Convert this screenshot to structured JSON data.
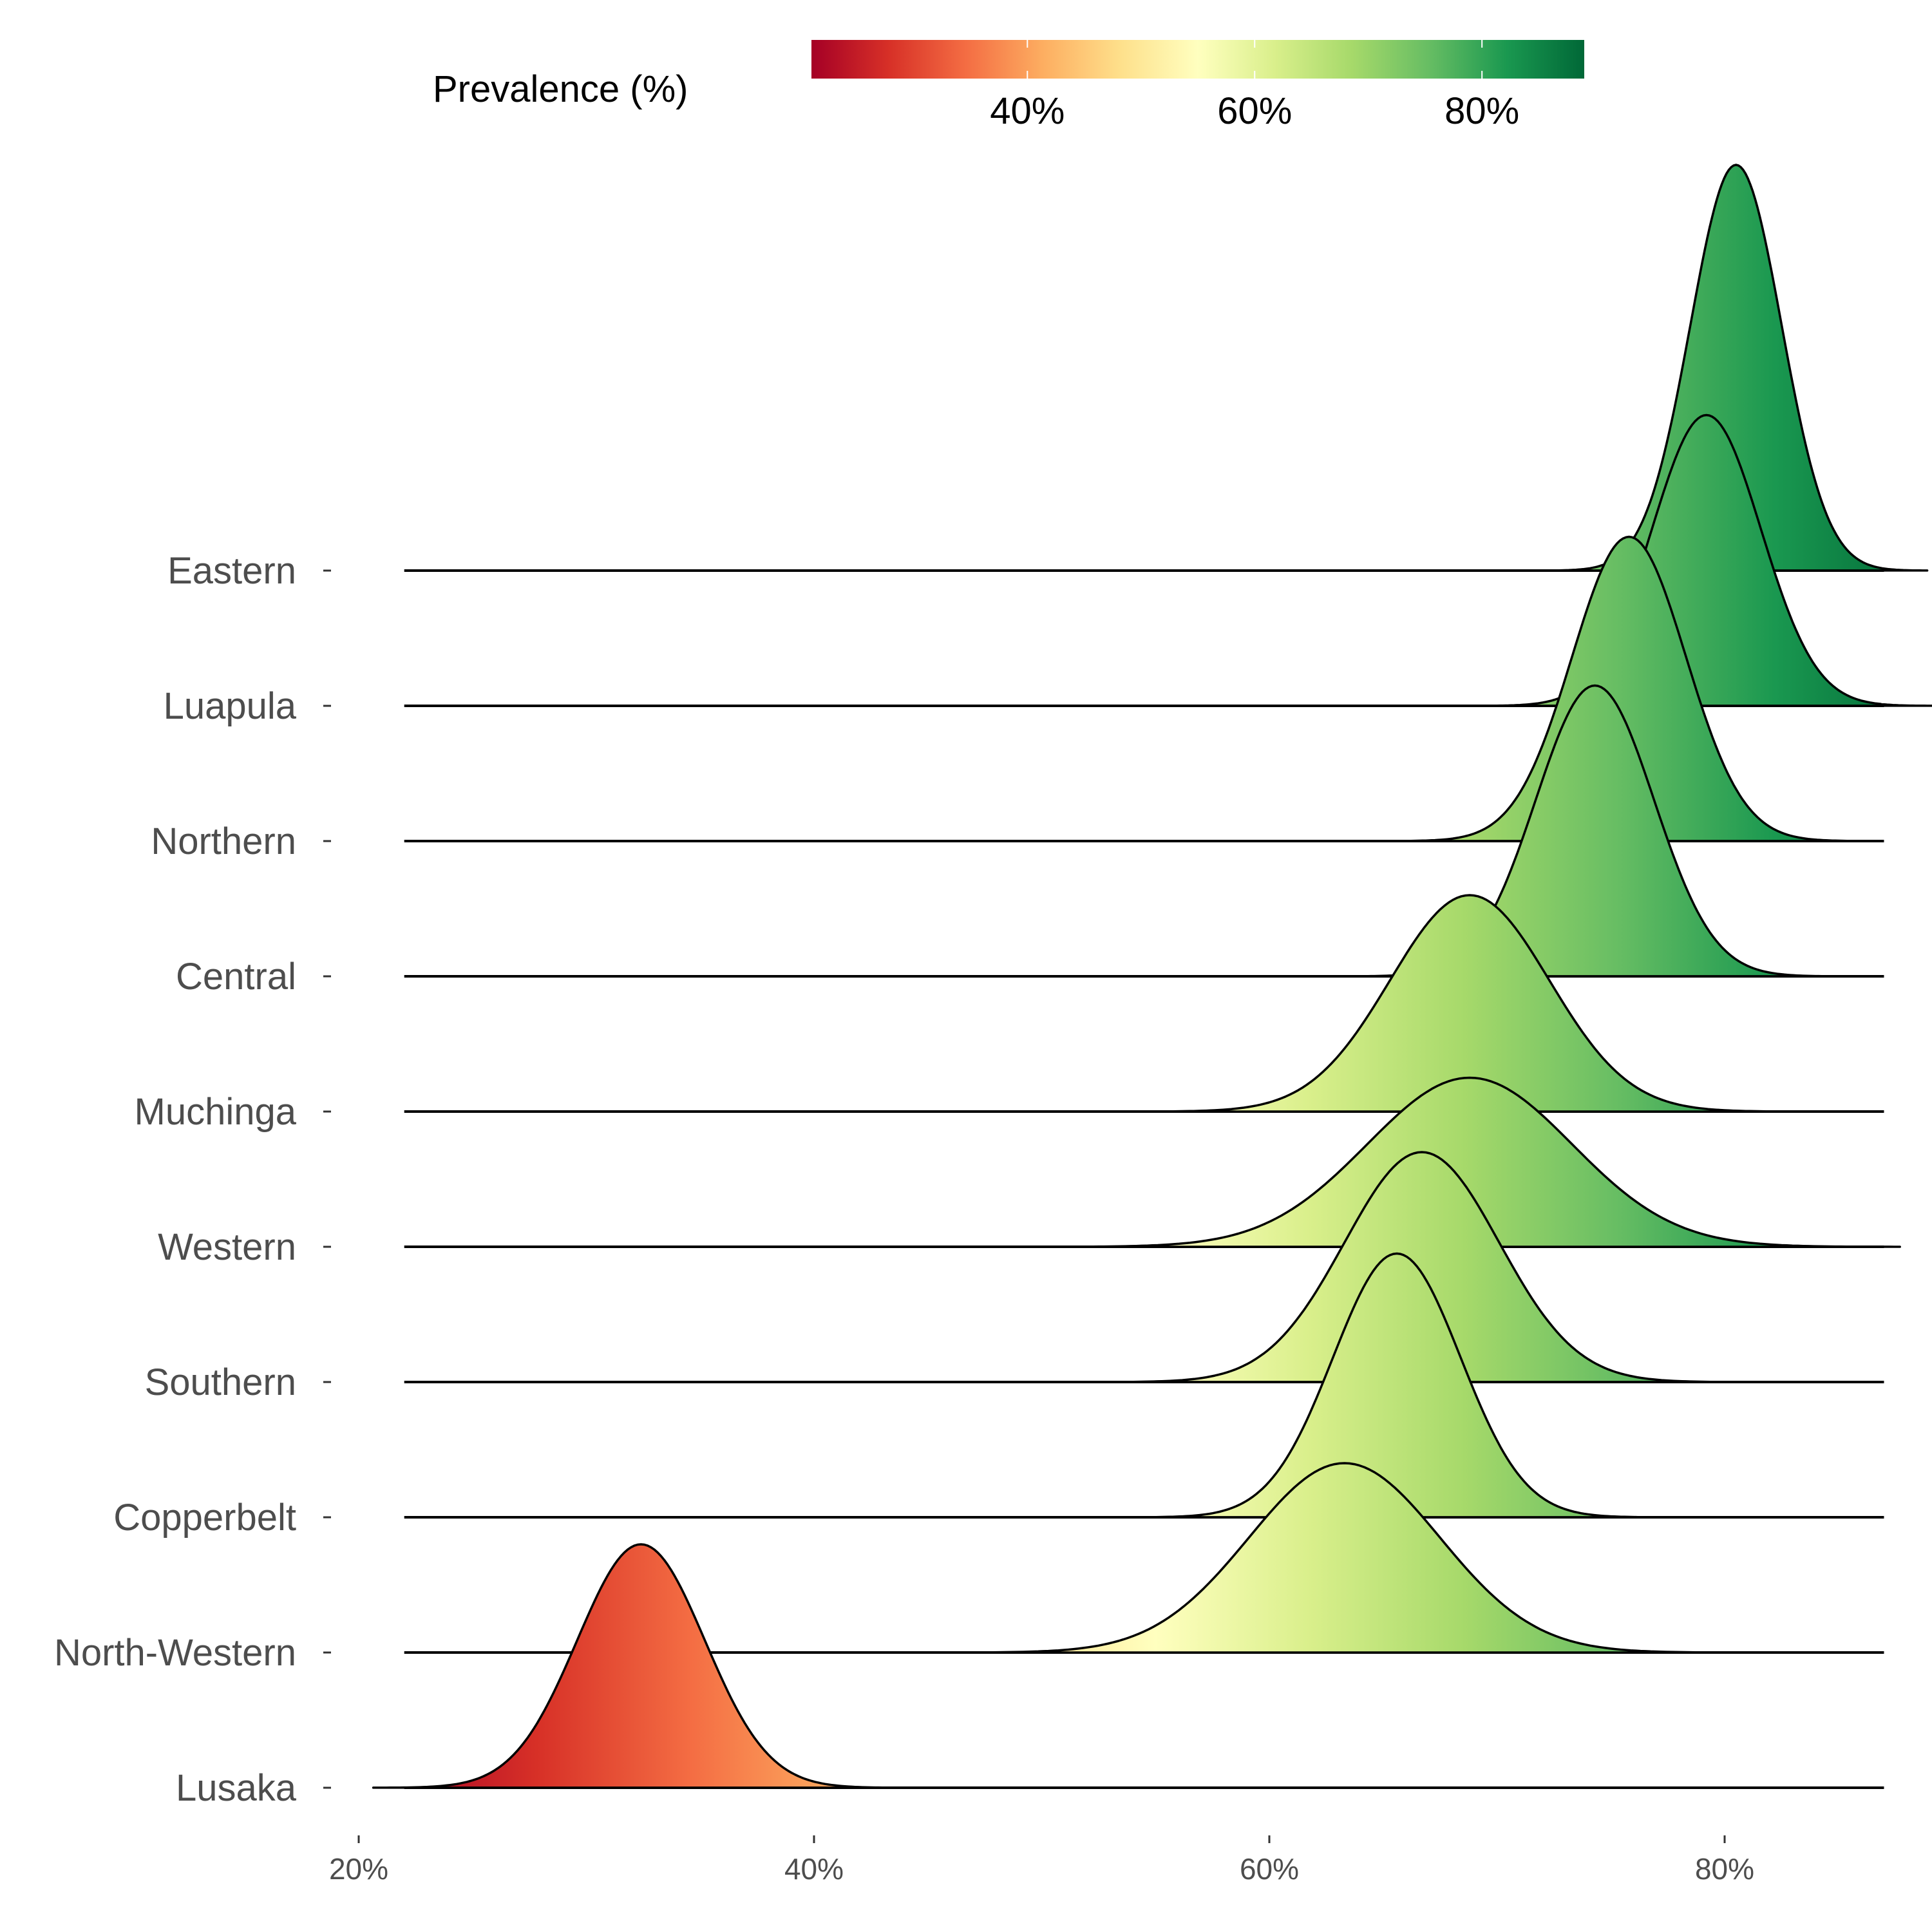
{
  "chart_data": {
    "type": "ridgeline",
    "categories": [
      "Eastern",
      "Luapula",
      "Northern",
      "Central",
      "Muchinga",
      "Western",
      "Southern",
      "Copperbelt",
      "North-Western",
      "Lusaka"
    ],
    "x_ticks": [
      {
        "value": 20,
        "label": "20%"
      },
      {
        "value": 40,
        "label": "40%"
      },
      {
        "value": 60,
        "label": "60%"
      },
      {
        "value": 80,
        "label": "80%"
      }
    ],
    "xlim": [
      22,
      87
    ],
    "series": [
      {
        "name": "Eastern",
        "mean": 80.5,
        "sd": 2.0,
        "peak_rows": 3.0
      },
      {
        "name": "Luapula",
        "mean": 79.2,
        "sd": 2.4,
        "peak_rows": 2.15
      },
      {
        "name": "Northern",
        "mean": 75.8,
        "sd": 2.5,
        "peak_rows": 2.25
      },
      {
        "name": "Central",
        "mean": 74.3,
        "sd": 2.6,
        "peak_rows": 2.15
      },
      {
        "name": "Muchinga",
        "mean": 68.8,
        "sd": 3.5,
        "peak_rows": 1.6
      },
      {
        "name": "Western",
        "mean": 68.8,
        "sd": 4.5,
        "peak_rows": 1.25
      },
      {
        "name": "Southern",
        "mean": 66.7,
        "sd": 3.4,
        "peak_rows": 1.7
      },
      {
        "name": "Copperbelt",
        "mean": 65.6,
        "sd": 2.8,
        "peak_rows": 1.95
      },
      {
        "name": "North-Western",
        "mean": 63.3,
        "sd": 4.2,
        "peak_rows": 1.4
      },
      {
        "name": "Lusaka",
        "mean": 32.4,
        "sd": 2.8,
        "peak_rows": 1.8
      }
    ],
    "legend": {
      "title": "Prevalence (%)",
      "placement": "top",
      "range": [
        21,
        89
      ],
      "ticks": [
        {
          "value": 40,
          "label": "40%"
        },
        {
          "value": 60,
          "label": "60%"
        },
        {
          "value": 80,
          "label": "80%"
        }
      ],
      "colors": [
        "#a50026",
        "#d73027",
        "#f46d43",
        "#fdae61",
        "#fee08b",
        "#ffffbf",
        "#d9ef8b",
        "#a6d96a",
        "#66bd63",
        "#1a9850",
        "#006837"
      ]
    }
  }
}
